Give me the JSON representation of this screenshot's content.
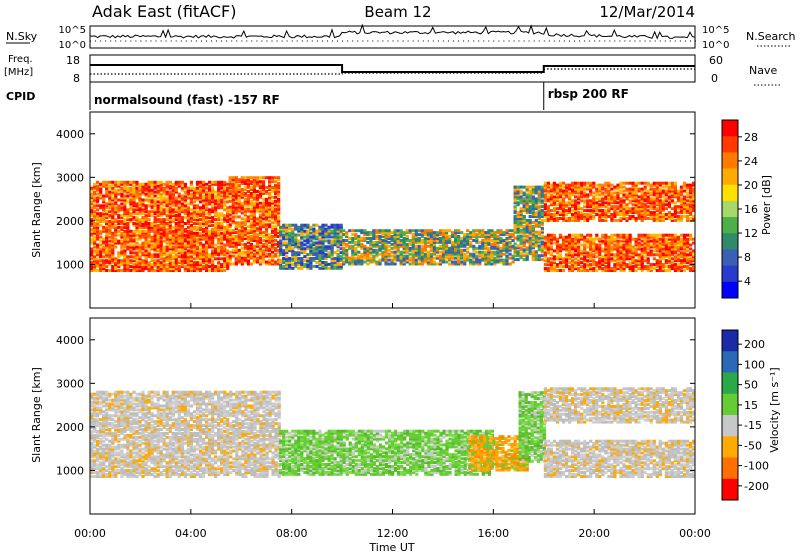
{
  "header": {
    "left": "Adak East (fitACF)",
    "center": "Beam 12",
    "right": "12/Mar/2014"
  },
  "panels": {
    "sky": {
      "left_label": "N.Sky",
      "right_label": "N.Search",
      "tick_top": "10^5",
      "tick_bottom": "10^0"
    },
    "freq": {
      "label_top": "Freq.",
      "label_unit": "[MHz]",
      "left_ticks": [
        "18",
        "8"
      ],
      "right_label": "Nave",
      "right_ticks": [
        "60",
        "0"
      ]
    },
    "cpid": {
      "label": "CPID",
      "programs": [
        {
          "name": "normalsound (fast) -157 RF",
          "start_hour": 0
        },
        {
          "name": "rbsp 200 RF",
          "start_hour": 18
        }
      ]
    }
  },
  "power_panel": {
    "ylabel": "Slant Range [km]",
    "colorbar_label": "Power [dB]",
    "colorbar_ticks": [
      "28",
      "24",
      "20",
      "16",
      "12",
      "8",
      "4"
    ],
    "colorbar_colors": [
      "#ff0000",
      "#ff3a00",
      "#ff7a00",
      "#ffaa00",
      "#ffe000",
      "#a6d96a",
      "#4daf4a",
      "#2f8a6a",
      "#3a5fb5",
      "#2a3acd",
      "#0000ff"
    ]
  },
  "velocity_panel": {
    "ylabel": "Slant Range [km]",
    "colorbar_label": "Velocity [m s⁻¹]",
    "colorbar_ticks": [
      "200",
      "100",
      "50",
      "15",
      "-15",
      "-50",
      "-100",
      "-200"
    ],
    "colorbar_colors": [
      "#1a2ba8",
      "#2a6ab5",
      "#2aa84a",
      "#66cc33",
      "#c8c8c8",
      "#ffaa00",
      "#ff7000",
      "#ff0000"
    ]
  },
  "x_axis": {
    "label": "Time UT",
    "ticks": [
      "00:00",
      "04:00",
      "08:00",
      "12:00",
      "16:00",
      "20:00",
      "00:00"
    ]
  },
  "chart_data": [
    {
      "type": "heatmap",
      "title": "",
      "xlabel": "Time UT",
      "ylabel": "Slant Range [km]",
      "xlim_hours": [
        0,
        24
      ],
      "ylim": [
        0,
        4500
      ],
      "yticks": [
        1000,
        2000,
        3000,
        4000
      ],
      "value": "Power [dB]",
      "regions": [
        {
          "t0": 0.0,
          "t1": 5.5,
          "r0": 850,
          "r1": 2900,
          "level": "high"
        },
        {
          "t0": 5.5,
          "t1": 7.5,
          "r0": 1000,
          "r1": 3000,
          "level": "high"
        },
        {
          "t0": 7.5,
          "t1": 10.0,
          "r0": 900,
          "r1": 1900,
          "level": "low"
        },
        {
          "t0": 10.0,
          "t1": 16.8,
          "r0": 1000,
          "r1": 1800,
          "level": "mid"
        },
        {
          "t0": 16.8,
          "t1": 18.0,
          "r0": 1100,
          "r1": 2800,
          "level": "mid"
        },
        {
          "t0": 18.0,
          "t1": 24.0,
          "r0": 850,
          "r1": 1700,
          "level": "high"
        },
        {
          "t0": 18.0,
          "t1": 24.0,
          "r0": 2000,
          "r1": 2900,
          "level": "high"
        }
      ]
    },
    {
      "type": "heatmap",
      "title": "",
      "xlabel": "Time UT",
      "ylabel": "Slant Range [km]",
      "xlim_hours": [
        0,
        24
      ],
      "ylim": [
        0,
        4500
      ],
      "yticks": [
        1000,
        2000,
        3000,
        4000
      ],
      "value": "Velocity [m s-1]",
      "regions": [
        {
          "t0": 0.0,
          "t1": 7.5,
          "r0": 850,
          "r1": 2800,
          "level": "ground"
        },
        {
          "t0": 7.5,
          "t1": 16.0,
          "r0": 900,
          "r1": 1900,
          "level": "pos"
        },
        {
          "t0": 15.0,
          "t1": 17.3,
          "r0": 1000,
          "r1": 1800,
          "level": "neg"
        },
        {
          "t0": 17.0,
          "t1": 18.0,
          "r0": 1200,
          "r1": 2800,
          "level": "pos"
        },
        {
          "t0": 18.0,
          "t1": 24.0,
          "r0": 850,
          "r1": 1700,
          "level": "ground"
        },
        {
          "t0": 18.0,
          "t1": 24.0,
          "r0": 2100,
          "r1": 2900,
          "level": "ground"
        }
      ]
    }
  ]
}
